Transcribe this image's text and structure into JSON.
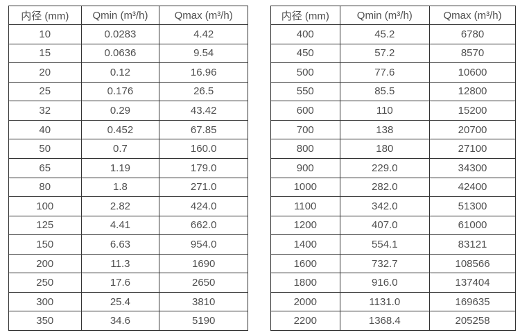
{
  "colors": {
    "background": "#ffffff",
    "border": "#333333",
    "text": "#4f4f4f"
  },
  "tables": [
    {
      "name": "small-diameter-flow-spec",
      "headers": [
        "内径 (mm)",
        "Qmin (m³/h)",
        "Qmax (m³/h)"
      ],
      "rows": [
        [
          "10",
          "0.0283",
          "4.42"
        ],
        [
          "15",
          "0.0636",
          "9.54"
        ],
        [
          "20",
          "0.12",
          "16.96"
        ],
        [
          "25",
          "0.176",
          "26.5"
        ],
        [
          "32",
          "0.29",
          "43.42"
        ],
        [
          "40",
          "0.452",
          "67.85"
        ],
        [
          "50",
          "0.7",
          "160.0"
        ],
        [
          "65",
          "1.19",
          "179.0"
        ],
        [
          "80",
          "1.8",
          "271.0"
        ],
        [
          "100",
          "2.82",
          "424.0"
        ],
        [
          "125",
          "4.41",
          "662.0"
        ],
        [
          "150",
          "6.63",
          "954.0"
        ],
        [
          "200",
          "11.3",
          "1690"
        ],
        [
          "250",
          "17.6",
          "2650"
        ],
        [
          "300",
          "25.4",
          "3810"
        ],
        [
          "350",
          "34.6",
          "5190"
        ]
      ]
    },
    {
      "name": "large-diameter-flow-spec",
      "headers": [
        "内径 (mm)",
        "Qmin (m³/h)",
        "Qmax (m³/h)"
      ],
      "rows": [
        [
          "400",
          "45.2",
          "6780"
        ],
        [
          "450",
          "57.2",
          "8570"
        ],
        [
          "500",
          "77.6",
          "10600"
        ],
        [
          "550",
          "85.5",
          "12800"
        ],
        [
          "600",
          "110",
          "15200"
        ],
        [
          "700",
          "138",
          "20700"
        ],
        [
          "800",
          "180",
          "27100"
        ],
        [
          "900",
          "229.0",
          "34300"
        ],
        [
          "1000",
          "282.0",
          "42400"
        ],
        [
          "1100",
          "342.0",
          "51300"
        ],
        [
          "1200",
          "407.0",
          "61000"
        ],
        [
          "1400",
          "554.1",
          "83121"
        ],
        [
          "1600",
          "732.7",
          "108566"
        ],
        [
          "1800",
          "916.0",
          "137404"
        ],
        [
          "2000",
          "1131.0",
          "169635"
        ],
        [
          "2200",
          "1368.4",
          "205258"
        ]
      ]
    }
  ]
}
